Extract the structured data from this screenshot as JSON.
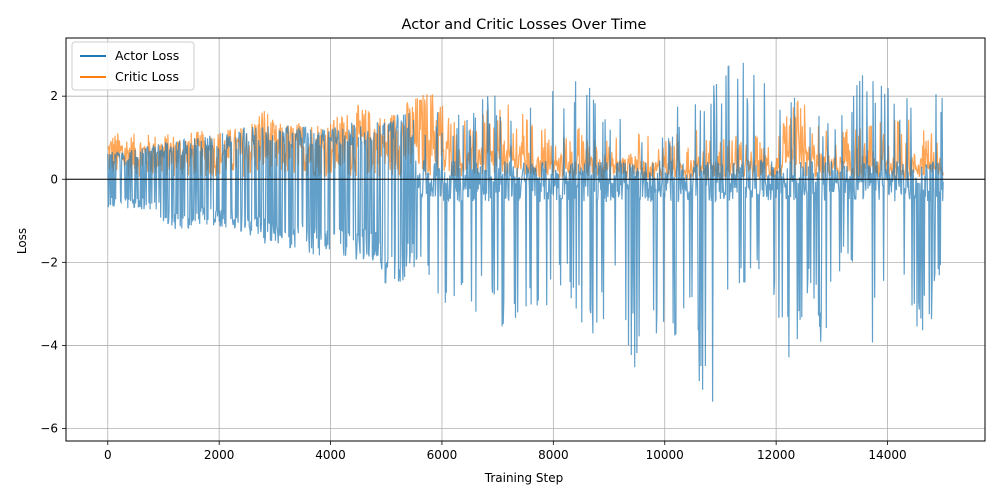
{
  "chart_data": {
    "type": "line",
    "title": "Actor and Critic Losses Over Time",
    "xlabel": "Training Step",
    "ylabel": "Loss",
    "xlim": [
      -750,
      15750
    ],
    "ylim": [
      -6.3,
      3.4
    ],
    "xticks": [
      0,
      2000,
      4000,
      6000,
      8000,
      10000,
      12000,
      14000
    ],
    "yticks": [
      -6,
      -4,
      -2,
      0,
      2
    ],
    "grid": true,
    "legend_position": "top-left",
    "zero_line": 0,
    "series": [
      {
        "name": "Actor Loss",
        "color": "#1f77b4",
        "description_points": [
          [
            0,
            0.7
          ],
          [
            50,
            -0.7
          ],
          [
            200,
            0.65
          ],
          [
            400,
            -0.7
          ],
          [
            600,
            0.75
          ],
          [
            800,
            -0.8
          ],
          [
            1000,
            0.9
          ],
          [
            1200,
            -1.25
          ],
          [
            1500,
            1.0
          ],
          [
            1800,
            -1.1
          ],
          [
            2000,
            1.1
          ],
          [
            2300,
            -1.2
          ],
          [
            2600,
            1.3
          ],
          [
            2900,
            -1.6
          ],
          [
            3200,
            1.3
          ],
          [
            3500,
            -1.7
          ],
          [
            3800,
            -1.95
          ],
          [
            4000,
            1.25
          ],
          [
            4200,
            -1.9
          ],
          [
            4500,
            1.4
          ],
          [
            4800,
            -2.0
          ],
          [
            5000,
            -2.6
          ],
          [
            5300,
            1.6
          ],
          [
            5600,
            -2.5
          ],
          [
            5800,
            -2.8
          ],
          [
            6000,
            1.7
          ],
          [
            6050,
            -3.3
          ],
          [
            6300,
            -2.7
          ],
          [
            6400,
            1.6
          ],
          [
            6600,
            -3.7
          ],
          [
            6800,
            -3.0
          ],
          [
            6900,
            2.2
          ],
          [
            7000,
            -3.2
          ],
          [
            7200,
            -4.3
          ],
          [
            7400,
            1.9
          ],
          [
            7600,
            -3.6
          ],
          [
            7800,
            -4.3
          ],
          [
            7900,
            2.2
          ],
          [
            8000,
            -2.4
          ],
          [
            8200,
            2.85
          ],
          [
            8400,
            -3.2
          ],
          [
            8600,
            -4.0
          ],
          [
            8900,
            -3.4
          ],
          [
            9000,
            1.7
          ],
          [
            9200,
            -2.7
          ],
          [
            9400,
            -4.6
          ],
          [
            9600,
            1.3
          ],
          [
            9800,
            -4.1
          ],
          [
            10000,
            1.1
          ],
          [
            10100,
            -3.9
          ],
          [
            10300,
            2.1
          ],
          [
            10500,
            -3.3
          ],
          [
            10600,
            2.35
          ],
          [
            10650,
            -5.3
          ],
          [
            10800,
            -5.85
          ],
          [
            11000,
            2.75
          ],
          [
            11200,
            -3.1
          ],
          [
            11400,
            -2.7
          ],
          [
            11550,
            2.95
          ],
          [
            11700,
            -2.8
          ],
          [
            11800,
            2.6
          ],
          [
            12000,
            -3.6
          ],
          [
            12200,
            2.1
          ],
          [
            12300,
            -4.6
          ],
          [
            12500,
            -3.0
          ],
          [
            12700,
            -2.9
          ],
          [
            12800,
            -4.4
          ],
          [
            13000,
            1.5
          ],
          [
            13200,
            -2.1
          ],
          [
            13500,
            -2.6
          ],
          [
            13700,
            -4.1
          ],
          [
            13750,
            2.9
          ],
          [
            13850,
            2.8
          ],
          [
            14000,
            -3.3
          ],
          [
            14300,
            -3.0
          ],
          [
            14500,
            1.85
          ],
          [
            14600,
            -3.85
          ],
          [
            14700,
            2.1
          ],
          [
            14800,
            -3.4
          ],
          [
            15000,
            -2.35
          ]
        ]
      },
      {
        "name": "Critic Loss",
        "color": "#ff7f0e",
        "description_points": [
          [
            0,
            1.1
          ],
          [
            500,
            1.05
          ],
          [
            1000,
            1.05
          ],
          [
            1500,
            1.1
          ],
          [
            2000,
            1.15
          ],
          [
            2500,
            1.25
          ],
          [
            2800,
            1.8
          ],
          [
            3000,
            1.3
          ],
          [
            3500,
            1.35
          ],
          [
            4000,
            1.4
          ],
          [
            4500,
            1.75
          ],
          [
            5000,
            1.5
          ],
          [
            5300,
            1.8
          ],
          [
            5800,
            2.15
          ],
          [
            6200,
            1.6
          ],
          [
            6800,
            1.6
          ],
          [
            7100,
            1.85
          ],
          [
            7500,
            1.5
          ],
          [
            8000,
            1.2
          ],
          [
            8500,
            1.3
          ],
          [
            9000,
            1.25
          ],
          [
            9500,
            1.1
          ],
          [
            10000,
            1.0
          ],
          [
            10500,
            1.3
          ],
          [
            11000,
            1.0
          ],
          [
            11500,
            1.1
          ],
          [
            12000,
            1.0
          ],
          [
            12400,
            2.1
          ],
          [
            12800,
            1.4
          ],
          [
            13300,
            1.2
          ],
          [
            13800,
            1.35
          ],
          [
            14300,
            1.5
          ],
          [
            14800,
            1.35
          ],
          [
            15000,
            0.35
          ]
        ]
      }
    ]
  }
}
